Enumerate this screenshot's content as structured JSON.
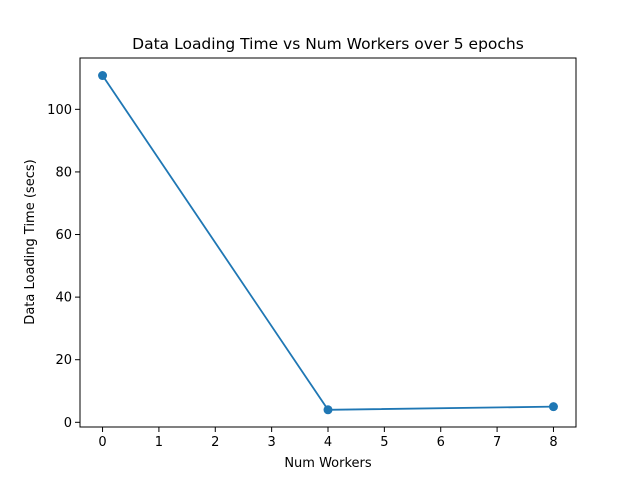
{
  "chart_data": {
    "type": "line",
    "title": "Data Loading Time vs Num Workers over 5 epochs",
    "xlabel": "Num Workers",
    "ylabel": "Data Loading Time (secs)",
    "x": [
      0,
      4,
      8
    ],
    "series": [
      {
        "values": [
          110.8,
          4.0,
          5.0
        ],
        "color": "#1f77b4",
        "marker": "circle"
      }
    ],
    "xlim": [
      -0.4,
      8.4
    ],
    "ylim": [
      -1.5,
      116.4
    ],
    "xticks": [
      0,
      1,
      2,
      3,
      4,
      5,
      6,
      7,
      8
    ],
    "yticks": [
      0,
      20,
      40,
      60,
      80,
      100
    ],
    "grid": false,
    "legend": "none"
  }
}
